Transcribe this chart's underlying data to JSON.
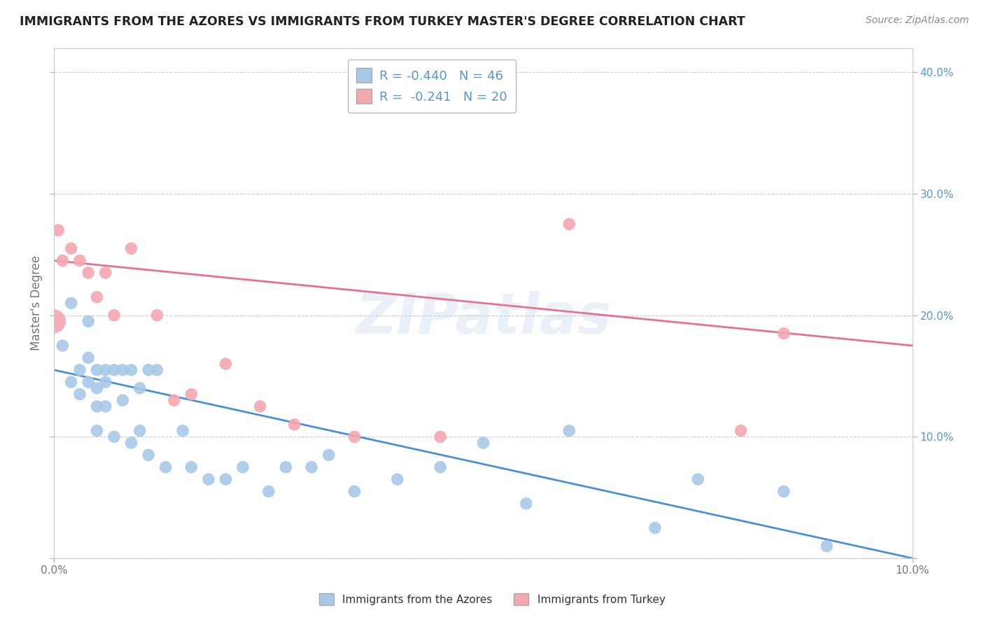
{
  "title": "IMMIGRANTS FROM THE AZORES VS IMMIGRANTS FROM TURKEY MASTER'S DEGREE CORRELATION CHART",
  "source": "Source: ZipAtlas.com",
  "ylabel": "Master's Degree",
  "xlim": [
    0.0,
    0.1
  ],
  "ylim": [
    0.0,
    0.42
  ],
  "ytick_values": [
    0.0,
    0.1,
    0.2,
    0.3,
    0.4
  ],
  "ytick_labels": [
    "",
    "10.0%",
    "20.0%",
    "30.0%",
    "40.0%"
  ],
  "xtick_values": [
    0.0,
    0.1
  ],
  "xtick_labels": [
    "0.0%",
    "10.0%"
  ],
  "background_color": "#ffffff",
  "grid_color": "#cccccc",
  "watermark_text": "ZIPatlas",
  "azores_color": "#a8c8e8",
  "turkey_color": "#f4a8b0",
  "azores_line_color": "#4a90d9",
  "turkey_line_color": "#e87090",
  "tick_color": "#5599cc",
  "R_azores": -0.44,
  "N_azores": 46,
  "R_turkey": -0.241,
  "N_turkey": 20,
  "azores_scatter_x": [
    0.001,
    0.002,
    0.002,
    0.003,
    0.003,
    0.004,
    0.004,
    0.004,
    0.005,
    0.005,
    0.005,
    0.005,
    0.006,
    0.006,
    0.006,
    0.007,
    0.007,
    0.008,
    0.008,
    0.009,
    0.009,
    0.01,
    0.01,
    0.011,
    0.011,
    0.012,
    0.013,
    0.015,
    0.016,
    0.018,
    0.02,
    0.022,
    0.025,
    0.027,
    0.03,
    0.032,
    0.035,
    0.04,
    0.045,
    0.05,
    0.055,
    0.06,
    0.07,
    0.075,
    0.085,
    0.09
  ],
  "azores_scatter_y": [
    0.175,
    0.21,
    0.145,
    0.155,
    0.135,
    0.195,
    0.165,
    0.145,
    0.155,
    0.14,
    0.125,
    0.105,
    0.155,
    0.145,
    0.125,
    0.155,
    0.1,
    0.155,
    0.13,
    0.155,
    0.095,
    0.14,
    0.105,
    0.155,
    0.085,
    0.155,
    0.075,
    0.105,
    0.075,
    0.065,
    0.065,
    0.075,
    0.055,
    0.075,
    0.075,
    0.085,
    0.055,
    0.065,
    0.075,
    0.095,
    0.045,
    0.105,
    0.025,
    0.065,
    0.055,
    0.01
  ],
  "turkey_scatter_x": [
    0.0005,
    0.001,
    0.002,
    0.003,
    0.004,
    0.005,
    0.006,
    0.007,
    0.009,
    0.012,
    0.014,
    0.016,
    0.02,
    0.024,
    0.028,
    0.035,
    0.045,
    0.06,
    0.08,
    0.085
  ],
  "turkey_scatter_y": [
    0.27,
    0.245,
    0.255,
    0.245,
    0.235,
    0.215,
    0.235,
    0.2,
    0.255,
    0.2,
    0.13,
    0.135,
    0.16,
    0.125,
    0.11,
    0.1,
    0.1,
    0.275,
    0.105,
    0.185
  ],
  "azores_trendline_x": [
    0.0,
    0.1
  ],
  "azores_trendline_y": [
    0.155,
    0.0
  ],
  "turkey_trendline_x": [
    0.0,
    0.1
  ],
  "turkey_trendline_y": [
    0.245,
    0.175
  ]
}
